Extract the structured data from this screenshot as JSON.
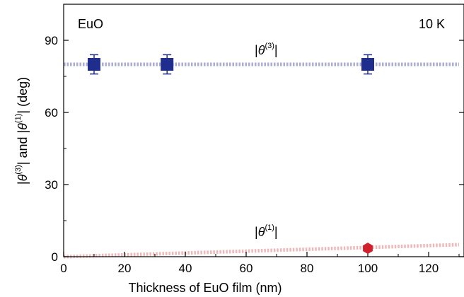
{
  "chart_data": {
    "type": "scatter",
    "xlabel": "Thickness of EuO film (nm)",
    "ylabel": {
      "pre": "|",
      "sym": "θ",
      "sup1": "(3)",
      "mid": "| and |",
      "sym2": "θ",
      "sup2": "(1)",
      "post": "| (deg)"
    },
    "xlim": [
      0,
      130
    ],
    "ylim": [
      0,
      105
    ],
    "xticks": [
      0,
      20,
      40,
      60,
      80,
      100,
      120
    ],
    "yticks": [
      0,
      30,
      60,
      90
    ],
    "annotations": {
      "left": "EuO",
      "right": "10 K"
    },
    "series": [
      {
        "label": {
          "pre": "|",
          "sym": "θ",
          "sup": "(3)",
          "post": "|"
        },
        "marker": "square",
        "color": "#1f2d8c",
        "points": [
          {
            "x": 10,
            "y": 80,
            "err": 4
          },
          {
            "x": 34,
            "y": 80,
            "err": 4
          },
          {
            "x": 100,
            "y": 80,
            "err": 4
          }
        ],
        "guide": {
          "from": [
            0,
            80
          ],
          "to": [
            130,
            80
          ],
          "color": "#a9add6"
        }
      },
      {
        "label": {
          "pre": "|",
          "sym": "θ",
          "sup": "(1)",
          "post": "|"
        },
        "marker": "hexagon",
        "color": "#d1202b",
        "points": [
          {
            "x": 100,
            "y": 3.5
          }
        ],
        "guide": {
          "from": [
            0,
            0
          ],
          "to": [
            130,
            5
          ],
          "color": "#f0b7b9"
        }
      }
    ]
  }
}
